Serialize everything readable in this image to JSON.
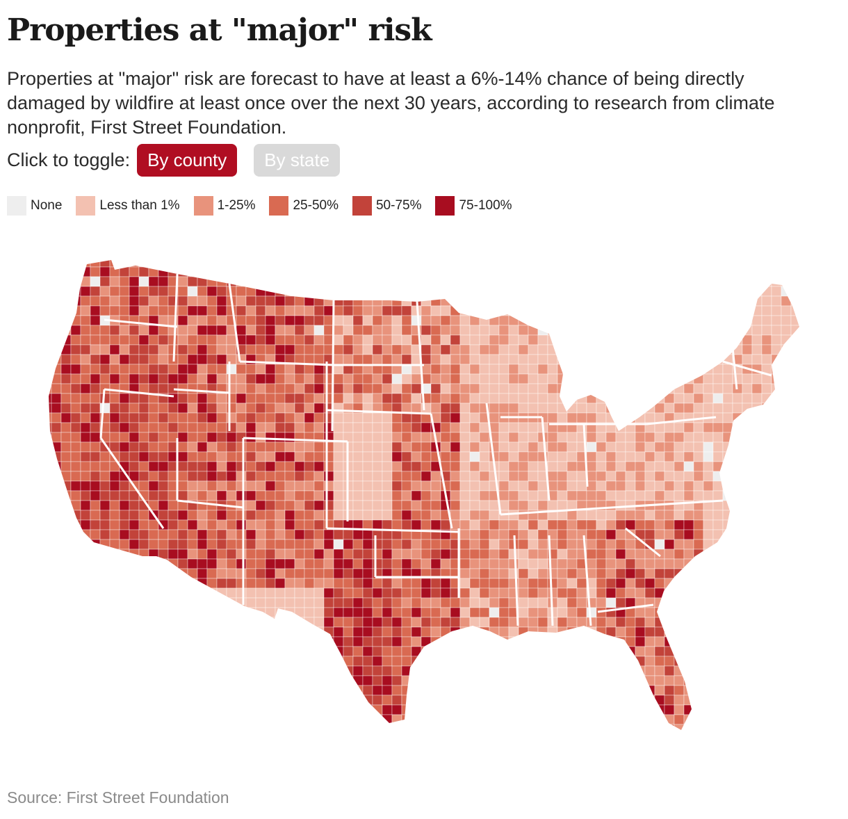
{
  "header": {
    "title": "Properties at \"major\" risk",
    "subtitle": "Properties at \"major\" risk are forecast to have at least a 6%-14% chance of being directly damaged by wildfire at least once over the next 30 years, according to research from climate nonprofit, First Street Foundation."
  },
  "toggle": {
    "label": "Click to toggle:",
    "options": [
      {
        "label": "By county",
        "active": true
      },
      {
        "label": "By state",
        "active": false
      }
    ]
  },
  "legend": [
    {
      "label": "None",
      "color": "#eeeeee"
    },
    {
      "label": "Less than 1%",
      "color": "#f3c1b1"
    },
    {
      "label": "1-25%",
      "color": "#e8937c"
    },
    {
      "label": "25-50%",
      "color": "#d96a52"
    },
    {
      "label": "50-75%",
      "color": "#c2433a"
    },
    {
      "label": "75-100%",
      "color": "#a80d20"
    }
  ],
  "map": {
    "region": "Contiguous United States",
    "unit": "county",
    "border_color": "#ffffff"
  },
  "source": "Source: First Street Foundation"
}
